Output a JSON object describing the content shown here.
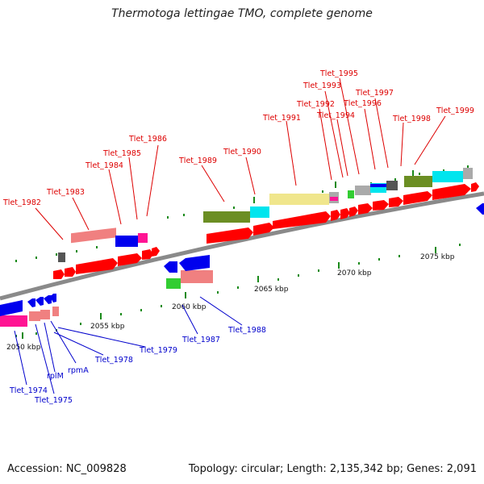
{
  "title": "Thermotoga lettingae TMO, complete genome",
  "footer": {
    "accession": "Accession: NC_009828",
    "summary": "Topology: circular; Length: 2,135,342 bp; Genes: 2,091"
  },
  "kbp_labels": [
    "2050 kbp",
    "2055 kbp",
    "2060 kbp",
    "2065 kbp",
    "2070 kbp",
    "2075 kbp"
  ],
  "upper_labels": [
    "Tlet_1982",
    "Tlet_1983",
    "Tlet_1984",
    "Tlet_1985",
    "Tlet_1986",
    "Tlet_1989",
    "Tlet_1990",
    "Tlet_1991",
    "Tlet_1992",
    "Tlet_1993",
    "Tlet_1994",
    "Tlet_1995",
    "Tlet_1996",
    "Tlet_1997",
    "Tlet_1998",
    "Tlet_1999"
  ],
  "lower_labels": [
    "Tlet_1974",
    "Tlet_1975",
    "rplM",
    "rpmA",
    "Tlet_1978",
    "Tlet_1979",
    "Tlet_1987",
    "Tlet_1988"
  ],
  "colors": {
    "cds": "#ff0000",
    "cds_reverse": "#0000ff",
    "upper_label": "#dd0000",
    "lower_label": "#0000cc",
    "backbone": "#888888",
    "tick": "#1a8a1a",
    "olive": "#6b8e23",
    "cyan": "#00e5ee",
    "khaki": "#f0e68c",
    "salmon": "#f08080",
    "magenta": "#ff1493",
    "grey": "#aaaaaa",
    "dark_grey": "#555555",
    "green": "#32cd32",
    "blue": "#0000ee"
  }
}
